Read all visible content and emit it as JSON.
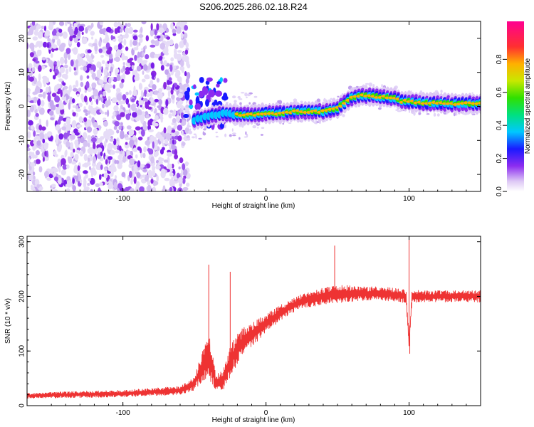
{
  "title": "S206.2025.286.02.18.R24",
  "chart_data": [
    {
      "type": "heatmap",
      "name": "spectrogram",
      "xlabel": "Height of straight line (km)",
      "ylabel": "Frequency (Hz)",
      "xlim": [
        -167,
        150
      ],
      "ylim": [
        -25,
        25
      ],
      "xticks": [
        -100,
        0,
        100
      ],
      "yticks": [
        -20,
        -10,
        0,
        10,
        20
      ],
      "colorbar": {
        "label": "Normalized spectral amplitude",
        "range": [
          0,
          1
        ],
        "ticks": [
          "0.0",
          "0.2",
          "0.4",
          "0.6",
          "0.8"
        ]
      },
      "ridge": {
        "x": [
          -50,
          -40,
          -30,
          -20,
          -10,
          0,
          10,
          20,
          30,
          40,
          45,
          50,
          55,
          60,
          65,
          70,
          80,
          90,
          95,
          100,
          110,
          120,
          130,
          140,
          150
        ],
        "y": [
          -4,
          -3,
          -2,
          -2.5,
          -2.5,
          -2,
          -2,
          -1.5,
          -1.5,
          -1.5,
          -1,
          -0.5,
          1,
          2.5,
          3,
          3.2,
          2.8,
          2.5,
          1.5,
          1.5,
          1,
          1,
          0.8,
          0.8,
          0.8
        ]
      },
      "noise_region_end_x": -58
    },
    {
      "type": "line",
      "name": "snr",
      "xlabel": "Height of straight line (km)",
      "ylabel": "SNR (10 * v/v)",
      "xlim": [
        -167,
        150
      ],
      "ylim": [
        0,
        310
      ],
      "xticks": [
        -100,
        0,
        100
      ],
      "yticks": [
        0,
        100,
        200,
        300
      ],
      "color": "#ee3333",
      "envelope": {
        "x": [
          -167,
          -140,
          -100,
          -80,
          -60,
          -50,
          -45,
          -40,
          -38,
          -35,
          -30,
          -25,
          -20,
          -15,
          -10,
          0,
          10,
          20,
          30,
          40,
          50,
          60,
          70,
          80,
          90,
          98,
          100,
          102,
          110,
          120,
          130,
          140,
          150
        ],
        "mean": [
          18,
          20,
          22,
          25,
          28,
          40,
          70,
          90,
          75,
          40,
          45,
          80,
          105,
          120,
          130,
          150,
          170,
          185,
          195,
          200,
          205,
          205,
          205,
          205,
          203,
          200,
          110,
          200,
          200,
          200,
          200,
          200,
          200
        ],
        "spread": [
          10,
          12,
          14,
          15,
          16,
          25,
          55,
          80,
          70,
          35,
          40,
          55,
          60,
          50,
          45,
          35,
          30,
          28,
          30,
          32,
          35,
          30,
          28,
          26,
          25,
          25,
          15,
          25,
          22,
          22,
          22,
          22,
          22
        ]
      },
      "peaks": [
        {
          "x": -40,
          "y": 258
        },
        {
          "x": -25,
          "y": 245
        },
        {
          "x": 48,
          "y": 293
        },
        {
          "x": 100,
          "y": 310
        },
        {
          "x": 100.5,
          "y": 95
        }
      ]
    }
  ]
}
